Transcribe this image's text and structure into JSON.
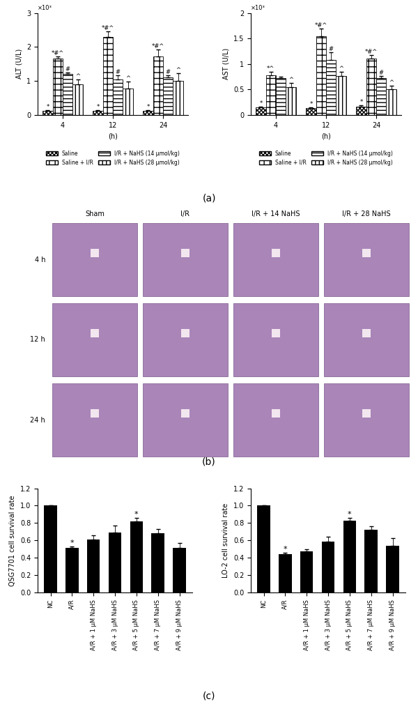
{
  "chart_data": [
    {
      "type": "grouped_bar",
      "panel": "(a)",
      "y_label": "ALT (U/L)",
      "y_multiplier_label": "×10³",
      "x_label": "(h)",
      "categories": [
        "4",
        "12",
        "24"
      ],
      "ylim": [
        0,
        3
      ],
      "yticks": [
        0,
        1,
        2,
        3
      ],
      "legend": "below",
      "series": [
        {
          "name": "Saline",
          "color": "#ffffff",
          "values": [
            0.13,
            0.13,
            0.12
          ],
          "errors": [
            0.02,
            0.02,
            0.02
          ],
          "annotations": [
            "*",
            "*",
            "*"
          ]
        },
        {
          "name": "Saline + I/R",
          "color": "#ffffff",
          "values": [
            1.65,
            2.3,
            1.72
          ],
          "errors": [
            0.08,
            0.15,
            0.2
          ],
          "annotations": [
            "*#^",
            "*#^",
            "*#^"
          ]
        },
        {
          "name": "I/R + NaHS (14 μmol/kg)",
          "color": "#ffffff",
          "values": [
            1.2,
            1.05,
            1.1
          ],
          "errors": [
            0.04,
            0.12,
            0.06
          ],
          "annotations": [
            "#",
            "#",
            "#"
          ]
        },
        {
          "name": "I/R + NaHS (28 μmol/kg)",
          "color": "#ffffff",
          "values": [
            0.9,
            0.78,
            1.0
          ],
          "errors": [
            0.15,
            0.2,
            0.22
          ],
          "annotations": [
            "^",
            "^",
            "^"
          ]
        }
      ]
    },
    {
      "type": "grouped_bar",
      "y_label": "AST (U/L)",
      "y_multiplier_label": "×10³",
      "x_label": "(h)",
      "categories": [
        "4",
        "12",
        "24"
      ],
      "ylim": [
        0,
        2
      ],
      "yticks": [
        0,
        0.5,
        1,
        1.5,
        2
      ],
      "legend": "below",
      "series": [
        {
          "name": "Saline",
          "color": "#ffffff",
          "values": [
            0.15,
            0.13,
            0.16
          ],
          "errors": [
            0.02,
            0.02,
            0.03
          ],
          "annotations": [
            "*",
            "*",
            "*"
          ]
        },
        {
          "name": "Saline + I/R",
          "color": "#ffffff",
          "values": [
            0.78,
            1.55,
            1.1
          ],
          "errors": [
            0.07,
            0.15,
            0.08
          ],
          "annotations": [
            "*^",
            "*#^",
            "*#^"
          ]
        },
        {
          "name": "I/R + NaHS (14 μmol/kg)",
          "color": "#ffffff",
          "values": [
            0.72,
            1.08,
            0.72
          ],
          "errors": [
            0.03,
            0.15,
            0.05
          ],
          "annotations": [
            null,
            "#",
            "#"
          ]
        },
        {
          "name": "I/R + NaHS (28 μmol/kg)",
          "color": "#ffffff",
          "values": [
            0.55,
            0.77,
            0.5
          ],
          "errors": [
            0.08,
            0.08,
            0.08
          ],
          "annotations": [
            "^",
            "^",
            "^"
          ]
        }
      ]
    },
    {
      "type": "bar",
      "panel": "(c)",
      "y_label": "QSG7701 cell survival rate",
      "color": "#000000",
      "categories": [
        "NC",
        "A/R",
        "A/R + 1 μM NaHS",
        "A/R + 3 μM NaHS",
        "A/R + 5 μM NaHS",
        "A/R + 7 μM NaHS",
        "A/R + 9 μM NaHS"
      ],
      "values": [
        1.0,
        0.51,
        0.61,
        0.69,
        0.82,
        0.68,
        0.51
      ],
      "errors": [
        0,
        0.02,
        0.05,
        0.08,
        0.04,
        0.05,
        0.06
      ],
      "annotations": [
        null,
        "*",
        null,
        null,
        "*",
        null,
        null
      ],
      "ylim": [
        0,
        1.2
      ],
      "yticks": [
        {
          "value": 0,
          "label": "0.0"
        },
        0.2,
        0.4,
        0.6,
        0.8,
        {
          "value": 1,
          "label": "1.0"
        },
        1.2
      ]
    },
    {
      "type": "bar",
      "y_label": "LO-2 cell survival rate",
      "color": "#000000",
      "categories": [
        "NC",
        "A/R",
        "A/R + 1 μM NaHS",
        "A/R + 3 μM NaHS",
        "A/R + 5 μM NaHS",
        "A/R + 7 μM NaHS",
        "A/R + 9 μM NaHS"
      ],
      "values": [
        1.0,
        0.44,
        0.47,
        0.59,
        0.83,
        0.72,
        0.54
      ],
      "errors": [
        0,
        0.02,
        0.03,
        0.05,
        0.03,
        0.04,
        0.09
      ],
      "annotations": [
        null,
        "*",
        null,
        null,
        "*",
        null,
        null
      ],
      "ylim": [
        0,
        1.2
      ],
      "yticks": [
        {
          "value": 0,
          "label": "0.0"
        },
        0.2,
        0.4,
        0.6,
        0.8,
        {
          "value": 1,
          "label": "1.0"
        },
        1.2
      ]
    }
  ],
  "image_grid": {
    "panel": "(b)",
    "columns": [
      "Sham",
      "I/R",
      "I/R + 14 NaHS",
      "I/R + 28 NaHS"
    ],
    "rows": [
      "4 h",
      "12 h",
      "24 h"
    ]
  }
}
